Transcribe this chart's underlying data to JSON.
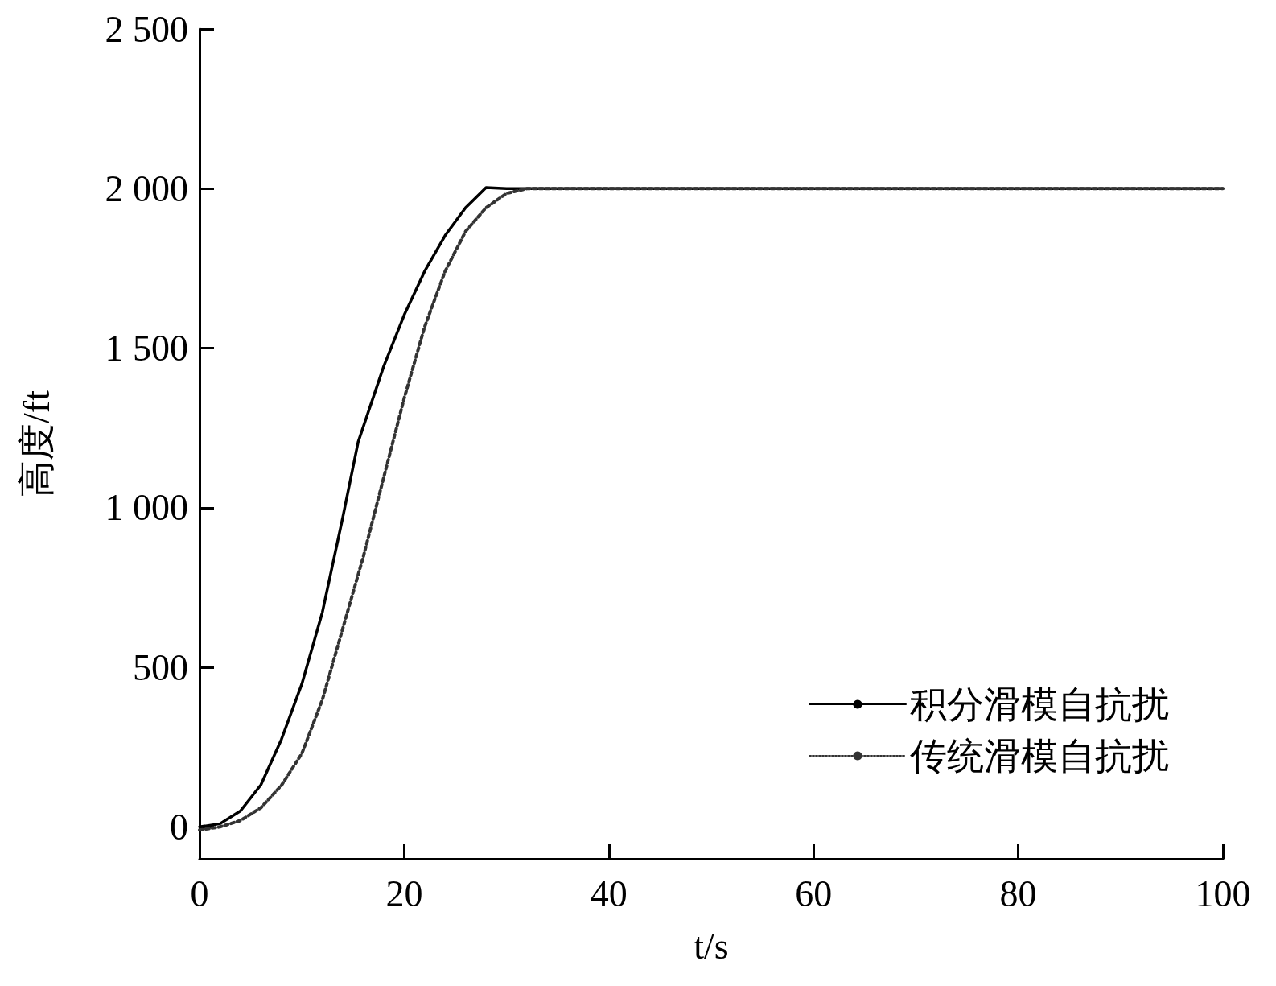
{
  "chart_data": {
    "type": "line",
    "xlabel": "t/s",
    "ylabel": "高度/ft",
    "xlim": [
      0,
      100
    ],
    "xticks": [
      0,
      20,
      40,
      60,
      80,
      100
    ],
    "ylim": [
      -100,
      2500
    ],
    "yticks": [
      0,
      500,
      {
        "value": 1000,
        "label": "1 000"
      },
      {
        "value": 1500,
        "label": "1 500"
      },
      {
        "value": 2000,
        "label": "2 000"
      },
      {
        "value": 2500,
        "label": "2 500"
      }
    ],
    "grid": false,
    "legend": "bottom right",
    "marker": "none",
    "series": [
      {
        "name": "积分滑模自抗扰",
        "color": "#000000",
        "line_style": "solid",
        "x": [
          0,
          2,
          4,
          6,
          8,
          10,
          12,
          14,
          15.5,
          18,
          20,
          22,
          24,
          26,
          28,
          30,
          40,
          60,
          80,
          100
        ],
        "values": [
          0,
          10,
          50,
          132,
          274,
          448,
          672,
          970,
          1206,
          1443,
          1604,
          1741,
          1853,
          1940,
          2003,
          2000,
          2000,
          2000,
          2000,
          2000
        ]
      },
      {
        "name": "传统滑模自抗扰",
        "color": "#333333",
        "line_style": "dotted",
        "x": [
          0,
          2,
          4,
          6,
          8,
          10,
          12,
          14,
          16,
          18,
          20,
          22,
          24,
          26,
          28,
          30,
          32,
          35,
          40,
          60,
          80,
          100
        ],
        "values": [
          -10,
          0,
          20,
          60,
          130,
          230,
          398,
          622,
          846,
          1095,
          1343,
          1567,
          1741,
          1866,
          1940,
          1985,
          2000,
          2000,
          2000,
          2000,
          2000,
          2000
        ]
      }
    ]
  }
}
